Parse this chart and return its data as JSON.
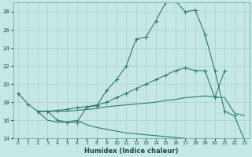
{
  "xlabel": "Humidex (Indice chaleur)",
  "x_values": [
    0,
    1,
    2,
    3,
    4,
    5,
    6,
    7,
    8,
    9,
    10,
    11,
    12,
    13,
    14,
    15,
    16,
    17,
    18,
    19,
    20,
    21,
    22,
    23
  ],
  "line1": [
    19.0,
    17.8,
    17.0,
    17.0,
    16.0,
    15.8,
    15.8,
    17.5,
    17.6,
    19.3,
    20.5,
    22.0,
    25.0,
    25.2,
    27.0,
    29.0,
    29.2,
    28.0,
    28.2,
    25.5,
    21.5,
    17.0,
    16.5,
    13.8
  ],
  "line2_x": [
    2,
    3,
    4,
    5,
    6,
    7,
    8,
    9,
    10,
    11,
    12,
    13,
    14,
    15,
    16,
    17,
    18,
    19,
    20,
    21
  ],
  "line2_y": [
    17.0,
    17.0,
    17.1,
    17.2,
    17.4,
    17.5,
    17.7,
    18.0,
    18.5,
    19.0,
    19.5,
    20.0,
    20.5,
    21.0,
    21.5,
    21.8,
    21.5,
    21.5,
    18.5,
    21.5
  ],
  "line3_x": [
    2,
    3,
    4,
    5,
    6,
    7,
    8,
    9,
    10,
    11,
    12,
    13,
    14,
    15,
    16,
    17,
    18,
    19,
    20,
    21,
    22,
    23
  ],
  "line3_y": [
    17.0,
    17.0,
    17.0,
    17.0,
    17.1,
    17.2,
    17.3,
    17.5,
    17.6,
    17.7,
    17.8,
    17.9,
    18.0,
    18.2,
    18.3,
    18.5,
    18.6,
    18.7,
    18.6,
    18.5,
    16.8,
    16.5
  ],
  "line4_x": [
    2,
    3,
    4,
    5,
    6,
    7,
    8,
    9,
    10,
    11,
    12,
    13,
    14,
    15,
    16,
    17,
    18,
    19,
    20,
    21,
    22,
    23
  ],
  "line4_y": [
    17.0,
    16.0,
    15.8,
    15.8,
    16.0,
    15.5,
    15.2,
    15.0,
    14.8,
    14.6,
    14.5,
    14.4,
    14.3,
    14.2,
    14.1,
    14.0,
    13.9,
    13.8,
    13.8,
    13.8,
    13.8,
    13.8
  ],
  "bg_color": "#c5e8e5",
  "grid_color": "#a8d0cc",
  "line_color": "#2d7a70",
  "ylim": [
    14,
    29
  ],
  "yticks": [
    14,
    16,
    18,
    20,
    22,
    24,
    26,
    28
  ],
  "xlim": [
    -0.5,
    23.5
  ]
}
